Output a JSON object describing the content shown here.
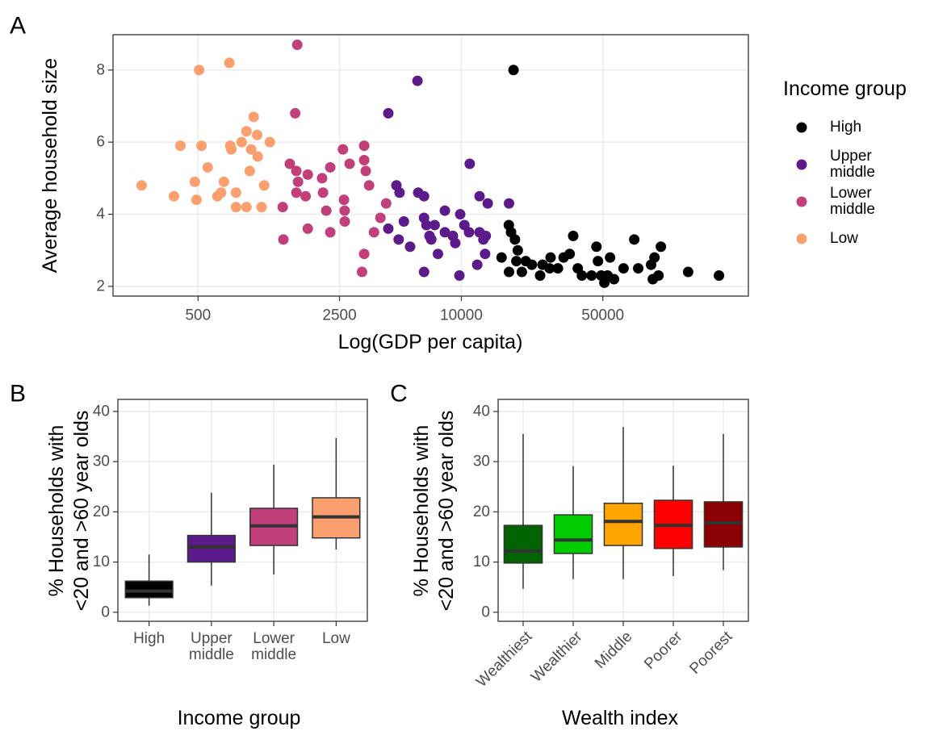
{
  "chart_data": [
    {
      "type": "scatter",
      "panel_label": "A",
      "x_label": "Log(GDP per capita)",
      "y_label": "Average household size",
      "xlog": true,
      "xlim": [
        190,
        262000
      ],
      "xticks": [
        500,
        2500,
        10000,
        50000
      ],
      "ylim": [
        1.73,
        8.98
      ],
      "yticks": [
        2,
        4,
        6,
        8
      ],
      "grid": true,
      "legend": "right",
      "legend_title": "Income group",
      "series": [
        {
          "name": "High",
          "color": "#000000",
          "x": [
            18100,
            17160,
            17600,
            18400,
            15800,
            17200,
            18700,
            19900,
            20800,
            22300,
            24500,
            25200,
            27600,
            30000,
            32000,
            34300,
            35700,
            37600,
            39400,
            44000,
            46500,
            47300,
            49100,
            50900,
            52800,
            54300,
            56800,
            63300,
            71500,
            74800,
            86600,
            88300,
            94200,
            96800,
            132000,
            187500,
            90000,
            27300,
            19000
          ],
          "y": [
            8.0,
            3.7,
            3.5,
            3.3,
            2.8,
            2.4,
            2.7,
            2.4,
            2.7,
            2.6,
            2.3,
            2.6,
            2.8,
            2.5,
            2.8,
            2.9,
            3.4,
            2.5,
            2.3,
            2.3,
            3.1,
            2.7,
            2.3,
            2.1,
            2.3,
            2.8,
            2.2,
            2.5,
            3.3,
            2.5,
            2.6,
            2.2,
            2.3,
            3.1,
            2.4,
            2.3,
            2.8,
            2.5,
            3.0
          ]
        },
        {
          "name": "Upper middle",
          "color": "#5C1A8B",
          "x": [
            6070,
            4355,
            11000,
            4775,
            4950,
            6120,
            6540,
            12300,
            13500,
            5200,
            4355,
            4900,
            5580,
            6540,
            6720,
            7380,
            8290,
            9870,
            10350,
            6960,
            7100,
            8290,
            9080,
            9330,
            10910,
            12300,
            12850,
            11980,
            13100,
            13200,
            7660,
            6540,
            9780,
            17200
          ],
          "y": [
            7.7,
            6.8,
            5.4,
            4.8,
            4.6,
            4.6,
            4.5,
            4.5,
            4.3,
            3.8,
            3.6,
            3.3,
            3.1,
            3.9,
            3.7,
            3.7,
            4.1,
            4.0,
            3.7,
            3.4,
            3.3,
            3.5,
            3.4,
            3.2,
            3.5,
            3.5,
            3.3,
            2.6,
            2.9,
            3.4,
            2.9,
            2.4,
            2.3,
            4.3
          ]
        },
        {
          "name": "Lower middle",
          "color": "#C2407A",
          "x": [
            1546,
            1510,
            1310,
            1320,
            1420,
            1530,
            1530,
            1560,
            1742,
            1700,
            1742,
            2050,
            2072,
            2150,
            2250,
            2250,
            2600,
            2630,
            2650,
            2654,
            2805,
            3230,
            3310,
            3310,
            3310,
            3370,
            3500,
            3700,
            3980,
            4250
          ],
          "y": [
            8.7,
            6.8,
            4.2,
            3.3,
            5.4,
            5.2,
            4.6,
            4.9,
            5.1,
            4.5,
            3.6,
            5.0,
            4.6,
            4.1,
            3.5,
            5.3,
            5.8,
            4.4,
            4.1,
            3.8,
            5.4,
            2.4,
            5.9,
            5.5,
            2.9,
            5.2,
            4.8,
            3.5,
            3.9,
            4.3
          ]
        },
        {
          "name": "Low",
          "color": "#FC9F6E",
          "x": [
            263,
            380,
            409,
            482,
            491,
            506,
            520,
            558,
            623,
            671,
            650,
            714,
            721,
            730,
            770,
            770,
            821,
            867,
            867,
            900,
            915,
            942,
            980,
            1030,
            1061,
            1132,
            986
          ],
          "y": [
            4.8,
            4.5,
            5.9,
            4.9,
            4.4,
            8.0,
            5.9,
            5.3,
            4.5,
            4.9,
            4.6,
            8.2,
            5.9,
            5.8,
            4.6,
            4.2,
            6.0,
            6.3,
            4.2,
            5.2,
            5.8,
            6.7,
            6.2,
            4.2,
            4.8,
            6.0,
            5.6
          ]
        }
      ]
    },
    {
      "type": "box",
      "panel_label": "B",
      "x_label": "Income group",
      "y_label": [
        "% Households with",
        "<20 and >60 year olds"
      ],
      "categories": [
        "High",
        "Upper middle",
        "Lower middle",
        "Low"
      ],
      "values": [
        [
          1.3,
          2.9,
          4.2,
          6.2,
          11.5
        ],
        [
          5.3,
          10.0,
          13.0,
          15.3,
          23.8
        ],
        [
          7.5,
          13.3,
          17.2,
          20.7,
          29.4
        ],
        [
          12.5,
          14.8,
          19.0,
          22.8,
          34.7
        ]
      ],
      "colors": [
        "#000000",
        "#5C1A8B",
        "#C2407A",
        "#FC9F6E"
      ],
      "ylim": [
        -1.8,
        42.4
      ],
      "yticks": [
        0,
        10,
        20,
        30,
        40
      ],
      "grid": true,
      "x_label_angle": 0
    },
    {
      "type": "box",
      "panel_label": "C",
      "x_label": "Wealth index",
      "y_label": [
        "% Households with",
        "<20 and >60 year olds"
      ],
      "categories": [
        "Wealthiest",
        "Wealthier",
        "Middle",
        "Poorer",
        "Poorest"
      ],
      "values": [
        [
          4.7,
          9.8,
          12.2,
          17.3,
          35.5
        ],
        [
          6.6,
          11.7,
          14.4,
          19.4,
          29.1
        ],
        [
          6.6,
          13.3,
          18.1,
          21.7,
          36.9
        ],
        [
          7.2,
          12.7,
          17.3,
          22.3,
          29.2
        ],
        [
          8.4,
          13.0,
          17.8,
          22.0,
          35.5
        ]
      ],
      "colors": [
        "#006400",
        "#00CD00",
        "#FFA500",
        "#FF0000",
        "#8B0000"
      ],
      "ylim": [
        -1.8,
        42.4
      ],
      "yticks": [
        0,
        10,
        20,
        30,
        40
      ],
      "grid": true,
      "x_label_angle": -45
    }
  ]
}
